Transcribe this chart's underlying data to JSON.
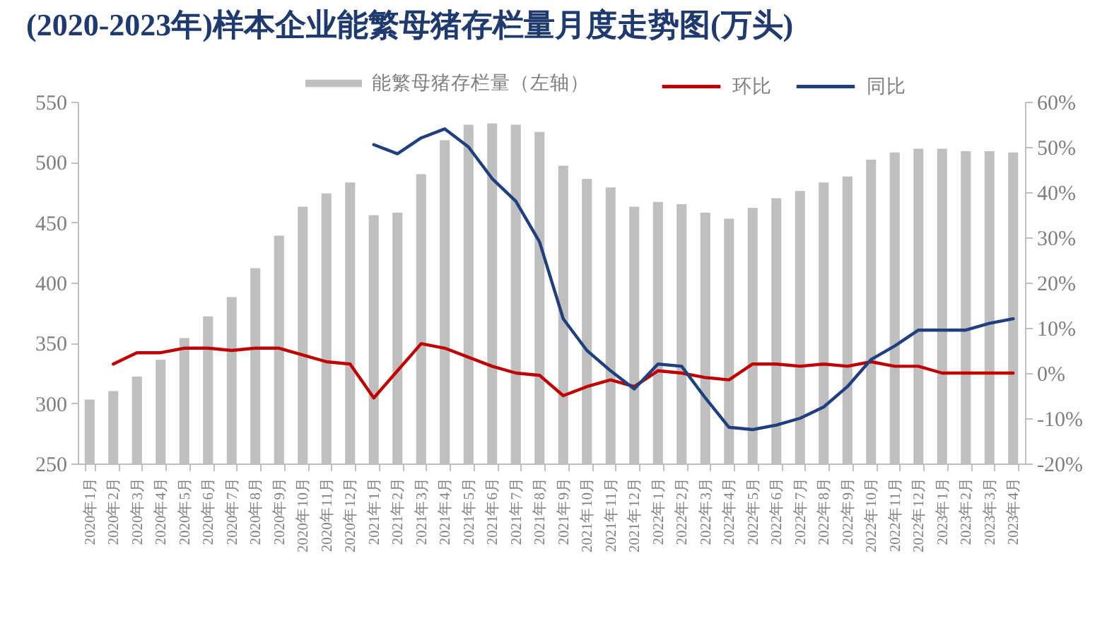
{
  "chart_data": {
    "type": "bar",
    "title": "(2020-2023年)样本企业能繁母猪存栏量月度走势图(万头)",
    "categories": [
      "2020年1月",
      "2020年2月",
      "2020年3月",
      "2020年4月",
      "2020年5月",
      "2020年6月",
      "2020年7月",
      "2020年8月",
      "2020年9月",
      "2020年10月",
      "2020年11月",
      "2020年12月",
      "2021年1月",
      "2021年2月",
      "2021年3月",
      "2021年4月",
      "2021年5月",
      "2021年6月",
      "2021年7月",
      "2021年8月",
      "2021年9月",
      "2021年10月",
      "2021年11月",
      "2021年12月",
      "2022年1月",
      "2022年2月",
      "2022年3月",
      "2022年4月",
      "2022年5月",
      "2022年6月",
      "2022年7月",
      "2022年8月",
      "2022年9月",
      "2022年10月",
      "2022年11月",
      "2022年12月",
      "2023年1月",
      "2023年2月",
      "2023年3月",
      "2023年4月"
    ],
    "series": [
      {
        "name": "能繁母猪存栏量（左轴）",
        "color": "#bfbfbf",
        "values": [
          303,
          310,
          322,
          336,
          354,
          372,
          388,
          412,
          439,
          463,
          474,
          483,
          456,
          458,
          490,
          518,
          531,
          532,
          531,
          525,
          497,
          486,
          479,
          463,
          467,
          465,
          458,
          453,
          462,
          470,
          476,
          483,
          488,
          502,
          508,
          511,
          511,
          509,
          509,
          508
        ]
      },
      {
        "name": "环比",
        "type": "line",
        "axis": "y2",
        "color": "#c00000",
        "values": [
          null,
          2,
          4.5,
          4.5,
          5.5,
          5.5,
          5,
          5.5,
          5.5,
          4,
          2.5,
          2,
          -5.5,
          0.5,
          6.5,
          5.5,
          3.5,
          1.5,
          0,
          -0.5,
          -5,
          -3,
          -1.5,
          -3,
          0.5,
          0,
          -1,
          -1.5,
          2,
          2,
          1.5,
          2,
          1.5,
          2.5,
          1.5,
          1.5,
          0,
          0,
          0,
          0
        ]
      },
      {
        "name": "同比",
        "type": "line",
        "axis": "y2",
        "color": "#1f3f7f",
        "values": [
          null,
          null,
          null,
          null,
          null,
          null,
          null,
          null,
          null,
          null,
          null,
          null,
          50.5,
          48.5,
          52,
          54,
          50,
          43,
          38,
          29,
          12,
          5,
          0.5,
          -3.5,
          2,
          1.5,
          -5.5,
          -12,
          -12.5,
          -11.5,
          -10,
          -7.5,
          -3,
          3,
          6,
          9.5,
          9.5,
          9.5,
          11,
          12
        ]
      }
    ],
    "ylim": [
      250,
      550
    ],
    "yticks": [
      250,
      300,
      350,
      400,
      450,
      500,
      550
    ],
    "y2lim": [
      -20,
      60
    ],
    "y2ticks": [
      {
        "value": -20,
        "label": "-20%"
      },
      {
        "value": -10,
        "label": "-10%"
      },
      {
        "value": 0,
        "label": "0%"
      },
      {
        "value": 10,
        "label": "10%"
      },
      {
        "value": 20,
        "label": "20%"
      },
      {
        "value": 30,
        "label": "30%"
      },
      {
        "value": 40,
        "label": "40%"
      },
      {
        "value": 50,
        "label": "50%"
      },
      {
        "value": 60,
        "label": "60%"
      }
    ],
    "legend": "top"
  }
}
